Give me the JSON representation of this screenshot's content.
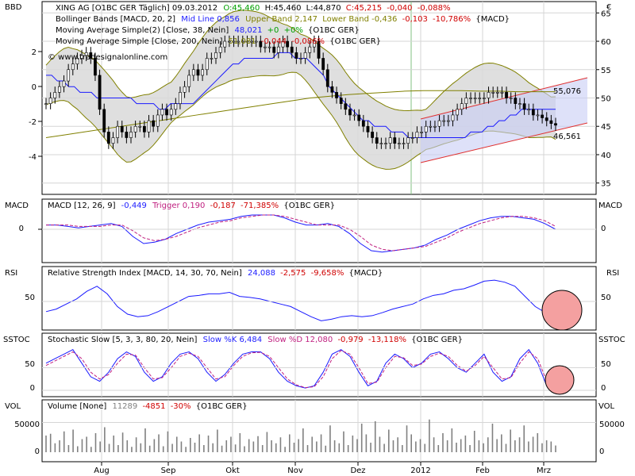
{
  "chart_data": [
    {
      "type": "line",
      "panel": "price",
      "left_axis_label": "BBD",
      "right_axis_label": "€",
      "y_left_ticks": [
        "2",
        "0",
        "-2",
        "-4"
      ],
      "y_right_ticks": [
        "65",
        "60",
        "55",
        "50",
        "45",
        "40",
        "35"
      ],
      "ylim_right": [
        33,
        67
      ],
      "x_ticks": [
        "Aug",
        "Sep",
        "Okt",
        "Nov",
        "Dez",
        "2012",
        "Feb",
        "Mrz"
      ],
      "legend": {
        "row1": {
          "title": "XING AG [O1BC GER  Täglich] 09.03.2012",
          "open": "O:45,460",
          "high": "H:45,460",
          "low": "L:44,870",
          "close": "C:45,215",
          "chg": "-0,040",
          "pct": "-0,088%"
        },
        "row2": {
          "title": "Bollinger Bands [MACD, 20, 2]",
          "mid": "Mid Line 0,856",
          "upper": "Upper Band 2,147",
          "lower": "Lower Band -0,436",
          "chg": "-0,103",
          "pct": "-10,786%",
          "src": "{MACD}"
        },
        "row3": {
          "title": "Moving Average Simple(2) [Close, 38, Nein]",
          "val": "48,021",
          "chg": "+0",
          "pct": "+0%",
          "src": "{O1BC GER}"
        },
        "row4": {
          "title": "Moving Average Simple [Close, 200, Nein]",
          "val": "51,081",
          "chg": "-0,044",
          "pct": "-0,086%",
          "src": "{O1BC GER}"
        },
        "watermark": "© www.tradesignalonline.com"
      },
      "annotations": [
        "55,076",
        "46,561"
      ],
      "series": [
        {
          "name": "Close",
          "values": [
            49,
            50,
            51,
            52,
            53,
            55,
            56,
            57,
            57.5,
            58,
            57,
            54,
            48,
            44,
            42,
            43,
            45,
            44,
            43,
            44,
            45,
            45,
            44,
            46,
            45,
            47,
            48,
            47,
            48,
            49,
            51,
            52,
            54,
            55,
            54,
            55,
            57,
            57,
            58,
            59,
            60,
            60,
            60,
            60,
            60,
            60,
            60,
            60,
            59,
            59,
            59,
            58,
            59,
            60,
            59,
            58,
            57,
            57,
            58,
            59,
            60,
            57,
            55,
            52,
            51,
            50,
            49,
            48,
            47,
            47,
            46,
            45,
            44,
            43,
            42,
            42,
            42,
            43,
            42,
            42,
            42,
            43,
            43,
            44,
            44,
            45,
            45,
            45,
            46,
            46,
            46,
            47,
            48,
            49,
            50,
            50,
            50,
            50,
            50,
            51,
            51,
            51,
            51,
            50,
            50,
            49,
            49,
            48,
            48,
            47,
            47,
            46.5,
            46,
            45.5,
            45.2
          ]
        },
        {
          "name": "Moving Average Simple(2) [Close, 38, Nein]",
          "values": [
            54,
            54,
            53,
            53,
            52,
            52,
            51,
            51,
            51,
            50,
            50,
            50,
            50,
            50,
            50,
            50,
            49,
            49,
            49,
            49,
            48,
            48,
            49,
            49,
            49,
            49,
            49,
            50,
            51,
            52,
            53,
            54,
            55,
            56,
            56,
            57,
            57,
            57,
            57,
            57,
            57,
            58,
            58,
            58,
            57,
            57,
            57,
            56,
            55,
            54,
            52,
            51,
            50,
            49,
            48,
            47,
            46,
            46,
            45,
            45,
            45,
            44,
            44,
            44,
            43,
            43,
            43,
            43,
            43,
            43,
            43,
            43,
            43,
            43,
            43,
            44,
            44,
            44,
            45,
            45,
            46,
            46,
            47,
            47,
            48,
            48,
            48,
            48,
            48,
            48,
            48
          ]
        },
        {
          "name": "Moving Average Simple [Close, 200, Nein]",
          "values": [
            43,
            43.5,
            44,
            44.5,
            45,
            45.5,
            46,
            46.5,
            47,
            47.5,
            48,
            48.5,
            49,
            49.5,
            50,
            50.3,
            50.6,
            50.8,
            51,
            51.2,
            51.3,
            51.3,
            51.3,
            51.2,
            51.2,
            51.1,
            51.1,
            51.1
          ]
        }
      ]
    },
    {
      "type": "line",
      "panel": "macd",
      "left_axis_label": "MACD",
      "right_axis_label": "MACD",
      "y_ticks": [
        "0"
      ],
      "legend": {
        "title": "MACD [12, 26, 9]",
        "val": "-0,449",
        "trigger": "Trigger 0,190",
        "chg": "-0,187",
        "pct": "-71,385%",
        "src": "{O1BC GER}"
      },
      "series": [
        {
          "name": "MACD",
          "values": [
            0.3,
            0.3,
            0.2,
            0.1,
            0.2,
            0.3,
            0.4,
            0.2,
            -0.5,
            -1.0,
            -0.9,
            -0.7,
            -0.3,
            0,
            0.3,
            0.5,
            0.6,
            0.7,
            0.9,
            1.0,
            1.0,
            1.0,
            0.8,
            0.5,
            0.3,
            0.3,
            0.4,
            0.2,
            -0.3,
            -1.0,
            -1.5,
            -1.6,
            -1.5,
            -1.4,
            -1.3,
            -1.1,
            -0.7,
            -0.4,
            0,
            0.3,
            0.6,
            0.8,
            0.9,
            0.9,
            0.8,
            0.7,
            0.4,
            0
          ]
        },
        {
          "name": "Trigger",
          "values": [
            0.3,
            0.3,
            0.3,
            0.2,
            0.2,
            0.2,
            0.3,
            0.3,
            -0.1,
            -0.6,
            -0.8,
            -0.7,
            -0.5,
            -0.2,
            0.1,
            0.3,
            0.5,
            0.6,
            0.8,
            0.9,
            1.0,
            1.0,
            0.9,
            0.7,
            0.5,
            0.3,
            0.3,
            0.3,
            0,
            -0.5,
            -1.1,
            -1.4,
            -1.5,
            -1.4,
            -1.3,
            -1.2,
            -0.9,
            -0.6,
            -0.2,
            0.1,
            0.4,
            0.6,
            0.8,
            0.9,
            0.9,
            0.8,
            0.6,
            0.2
          ]
        }
      ]
    },
    {
      "type": "line",
      "panel": "rsi",
      "left_axis_label": "RSI",
      "right_axis_label": "RSI",
      "y_ticks": [
        "50"
      ],
      "ylim": [
        0,
        100
      ],
      "legend": {
        "title": "Relative Strength Index [MACD, 14, 30, 70, Nein]",
        "val": "24,088",
        "chg": "-2,575",
        "pct": "-9,658%",
        "src": "{MACD}"
      },
      "series": [
        {
          "name": "RSI",
          "values": [
            30,
            35,
            45,
            55,
            70,
            80,
            65,
            40,
            25,
            20,
            22,
            30,
            40,
            50,
            60,
            62,
            65,
            65,
            68,
            60,
            58,
            55,
            50,
            45,
            40,
            30,
            20,
            12,
            15,
            20,
            22,
            20,
            22,
            28,
            35,
            40,
            45,
            55,
            62,
            65,
            72,
            75,
            82,
            90,
            92,
            88,
            80,
            60,
            40,
            28,
            24
          ]
        }
      ]
    },
    {
      "type": "line",
      "panel": "stochastic",
      "left_axis_label": "SSTOC",
      "right_axis_label": "SSTOC",
      "y_ticks": [
        "50",
        "0"
      ],
      "ylim": [
        0,
        100
      ],
      "legend": {
        "title": "Stochastic Slow [5, 3, 3, 80, 20, Nein]",
        "k": "Slow %K 6,484",
        "d": "Slow %D 12,080",
        "chg": "-0,979",
        "pct": "-13,118%",
        "src": "{O1BC GER}"
      },
      "series": [
        {
          "name": "Slow %K",
          "values": [
            60,
            70,
            80,
            90,
            60,
            30,
            20,
            40,
            70,
            85,
            75,
            40,
            20,
            30,
            60,
            80,
            85,
            70,
            40,
            20,
            35,
            60,
            80,
            85,
            85,
            70,
            40,
            20,
            10,
            5,
            10,
            40,
            80,
            90,
            75,
            40,
            10,
            20,
            60,
            80,
            70,
            50,
            60,
            80,
            85,
            70,
            50,
            40,
            60,
            80,
            40,
            20,
            30,
            70,
            90,
            60,
            10,
            6
          ]
        },
        {
          "name": "Slow %D",
          "values": [
            55,
            65,
            75,
            85,
            70,
            40,
            25,
            35,
            60,
            80,
            78,
            50,
            25,
            28,
            50,
            75,
            82,
            75,
            50,
            25,
            30,
            55,
            75,
            83,
            84,
            75,
            50,
            25,
            12,
            6,
            8,
            30,
            70,
            88,
            80,
            50,
            15,
            18,
            50,
            75,
            72,
            55,
            58,
            75,
            82,
            75,
            55,
            42,
            55,
            75,
            50,
            25,
            28,
            60,
            85,
            70,
            20,
            12
          ]
        }
      ]
    },
    {
      "type": "bar",
      "panel": "volume",
      "left_axis_label": "VOL",
      "right_axis_label": "VOL",
      "y_ticks": [
        "50000",
        "0"
      ],
      "ylim": [
        0,
        80000
      ],
      "legend": {
        "title": "Volume [None]",
        "val": "11289",
        "chg": "-4851",
        "pct": "-30%",
        "src": "{O1BC GER}"
      },
      "values": [
        28000,
        31000,
        15000,
        20000,
        35000,
        12000,
        38000,
        10000,
        22000,
        26000,
        9000,
        32000,
        18000,
        42000,
        14000,
        28000,
        12000,
        33000,
        20000,
        9000,
        25000,
        15000,
        40000,
        11000,
        22000,
        30000,
        10000,
        35000,
        14000,
        26000,
        18000,
        9000,
        24000,
        16000,
        30000,
        12000,
        28000,
        15000,
        38000,
        11000,
        20000,
        26000,
        13000,
        32000,
        10000,
        22000,
        18000,
        27000,
        12000,
        34000,
        20000,
        15000,
        25000,
        9000,
        30000,
        16000,
        22000,
        40000,
        12000,
        26000,
        18000,
        30000,
        11000,
        45000,
        20000,
        15000,
        35000,
        12000,
        28000,
        22000,
        48000,
        30000,
        16000,
        52000,
        26000,
        14000,
        38000,
        20000,
        25000,
        12000,
        45000,
        30000,
        18000,
        22000,
        14000,
        55000,
        25000,
        12000,
        32000,
        20000,
        40000,
        16000,
        22000,
        28000,
        12000,
        36000,
        20000,
        15000,
        25000,
        48000,
        22000,
        30000,
        14000,
        38000,
        20000,
        25000,
        45000,
        18000,
        26000,
        32000,
        15000,
        20000,
        18000,
        11289
      ]
    }
  ]
}
